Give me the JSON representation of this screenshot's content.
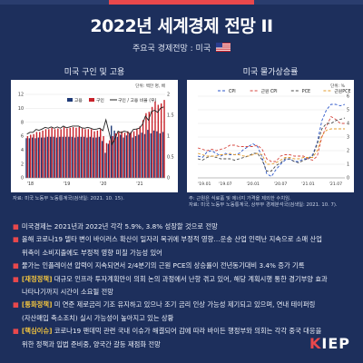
{
  "header": {
    "title": "2022년 세계경제 전망 II",
    "subtitle": "주요국 경제전망 : 미국"
  },
  "colors": {
    "background": "#1d2f5c",
    "accent": "#e8484c",
    "tag": "#f3c53f"
  },
  "chart_data": [
    {
      "type": "bar",
      "title": "미국 구인 및 고용",
      "unit_left": "단위: 백만 명, 배",
      "x_ticks": [
        "'18",
        "'19",
        "'20",
        "'21"
      ],
      "ylim": [
        0,
        12
      ],
      "y_ticks": [
        0,
        2,
        4,
        6,
        8,
        10,
        12
      ],
      "y2lim": [
        0,
        2
      ],
      "y2_ticks": [
        0,
        0.5,
        1,
        1.5,
        2
      ],
      "legend": [
        "고용",
        "구인",
        "구인 / 고용 비율 (우)"
      ],
      "legend_position": "top-right",
      "series": [
        {
          "name": "고용",
          "color": "#1f3b78",
          "values": [
            5.7,
            5.7,
            5.8,
            5.7,
            5.8,
            5.8,
            5.8,
            5.9,
            5.9,
            5.9,
            5.8,
            5.9,
            5.9,
            5.9,
            5.9,
            5.9,
            5.8,
            5.9,
            5.9,
            5.9,
            5.8,
            5.9,
            5.8,
            5.8,
            5.9,
            5.3,
            3.6,
            4.9,
            7.5,
            6.8,
            5.9,
            6.2,
            5.8,
            6.1,
            6.3,
            5.8,
            6.0,
            6.2,
            6.5,
            6.3,
            6.9,
            6.4,
            6.8,
            6.7,
            6.4,
            6.6
          ]
        },
        {
          "name": "구인",
          "color": "#c8222a",
          "values": [
            6.0,
            6.2,
            6.3,
            6.6,
            6.6,
            6.8,
            7.0,
            7.0,
            7.2,
            7.0,
            7.1,
            7.0,
            7.3,
            7.1,
            7.2,
            7.3,
            7.2,
            7.3,
            7.1,
            7.0,
            7.0,
            7.0,
            6.7,
            6.8,
            7.0,
            6.0,
            5.0,
            5.4,
            6.0,
            6.4,
            6.6,
            6.7,
            6.5,
            6.7,
            6.6,
            6.7,
            7.0,
            7.4,
            8.3,
            9.3,
            9.5,
            10.2,
            11.0,
            10.5,
            10.7,
            11.2
          ]
        },
        {
          "name": "구인 / 고용 비율 (우)",
          "color": "#222222",
          "values": [
            1.05,
            1.09,
            1.09,
            1.16,
            1.14,
            1.17,
            1.21,
            1.19,
            1.22,
            1.19,
            1.22,
            1.19,
            1.24,
            1.2,
            1.22,
            1.24,
            1.24,
            1.24,
            1.2,
            1.19,
            1.21,
            1.19,
            1.16,
            1.17,
            1.19,
            1.13,
            1.39,
            1.1,
            0.8,
            0.94,
            1.12,
            1.08,
            1.12,
            1.1,
            1.05,
            1.16,
            1.17,
            1.19,
            1.28,
            1.48,
            1.38,
            1.59,
            1.62,
            1.57,
            1.67,
            1.7
          ]
        }
      ],
      "source": "자료: 미국 노동부 노동통계국(검색일: 2021. 10. 15)."
    },
    {
      "type": "line",
      "title": "미국 물가상승률",
      "unit": "단위: %",
      "x_ticks": [
        "'19.01",
        "'19.07",
        "'20.01",
        "'20.07",
        "'21.01",
        "'21.07"
      ],
      "ylim": [
        0,
        6
      ],
      "y_ticks": [
        0,
        1,
        2,
        3,
        4,
        5,
        6
      ],
      "legend": [
        "CPI",
        "근원 CPI",
        "PCE",
        "근원PCE"
      ],
      "legend_position": "top",
      "series": [
        {
          "name": "CPI",
          "color": "#2b56c9",
          "dash": "3,2",
          "values": [
            1.6,
            1.5,
            1.9,
            2.0,
            1.8,
            1.6,
            1.8,
            1.7,
            1.7,
            1.8,
            2.1,
            2.3,
            2.5,
            2.3,
            1.5,
            0.3,
            0.1,
            0.6,
            1.0,
            1.3,
            1.4,
            1.2,
            1.2,
            1.4,
            1.4,
            1.7,
            2.6,
            4.2,
            5.0,
            5.4,
            5.4,
            5.3,
            5.4
          ]
        },
        {
          "name": "근원 CPI",
          "color": "#d6453d",
          "dash": "3,2",
          "values": [
            2.2,
            2.1,
            2.0,
            2.1,
            2.0,
            2.1,
            2.2,
            2.4,
            2.4,
            2.3,
            2.3,
            2.3,
            2.3,
            2.4,
            2.1,
            1.4,
            1.2,
            1.2,
            1.6,
            1.7,
            1.7,
            1.6,
            1.6,
            1.6,
            1.4,
            1.3,
            1.6,
            3.0,
            3.8,
            4.5,
            4.3,
            4.0,
            4.0
          ]
        },
        {
          "name": "PCE",
          "color": "#4a4a4a",
          "dash": "3,2",
          "values": [
            1.4,
            1.3,
            1.5,
            1.6,
            1.5,
            1.4,
            1.4,
            1.4,
            1.3,
            1.4,
            1.5,
            1.6,
            1.8,
            1.8,
            1.3,
            0.5,
            0.5,
            0.9,
            1.1,
            1.4,
            1.4,
            1.2,
            1.1,
            1.3,
            1.4,
            1.6,
            2.5,
            3.6,
            4.0,
            4.0,
            4.2,
            4.3,
            4.4
          ]
        },
        {
          "name": "근원PCE",
          "color": "#e39b2c",
          "dash": "3,2",
          "values": [
            1.8,
            1.7,
            1.6,
            1.6,
            1.6,
            1.7,
            1.7,
            1.8,
            1.7,
            1.7,
            1.6,
            1.6,
            1.7,
            1.8,
            1.7,
            1.0,
            1.0,
            1.1,
            1.3,
            1.5,
            1.5,
            1.4,
            1.4,
            1.5,
            1.5,
            1.5,
            2.0,
            3.1,
            3.5,
            3.6,
            3.6,
            3.6,
            3.6
          ]
        }
      ],
      "source_line1": "주: 근원은 식료품 및 에너지 가격을 제외한 수치임.",
      "source_line2": "자료: 미국 노동부 노동통계국, 상무부 경제분석국(검색일: 2021. 10. 7)."
    }
  ],
  "bullets": [
    {
      "tag": "",
      "text": "미국경제는 2021년과 2022년 각각 5.9%, 3.8% 성장할 것으로 전망",
      "cont": ""
    },
    {
      "tag": "",
      "text": "올해 코로나19 델타 변이 바이러스 확산이 일자리 복귀에 부정적 영향…운송 산업 인력난 지속으로 소매 산업",
      "cont": "위축이 소비지출에도 부정적 영향 미칠 가능성 있어"
    },
    {
      "tag": "",
      "text": "물가는 인플레이션 압력이 지속되면서 2/4분기의 근원 PCE의 상승률이 전년동기대비 3.4% 증가 기록",
      "cont": ""
    },
    {
      "tag": "[재정정책]",
      "text": " 대규모 인프라 투자계획안이 의회 논의 과정에서 난항 겪고 있어, 해당 계획시행 통한 경기부양 효과",
      "cont": "나타나기까지 시간이 소요될 전망"
    },
    {
      "tag": "[통화정책]",
      "text": " 미 연준 제로금리 기조 유지하고 있으나 조기 금리 인상 가능성 제기되고 있으며, 연내 테이퍼링",
      "cont": "(자산매입 축소조치) 실시 가능성이 높아지고 있는 상황"
    },
    {
      "tag": "[핵심이슈]",
      "text": " 코로나19 팬데믹 관련 국내 이슈가 해결되어 감에 따라 바이든 행정부와 의회는 각각 중국 대응을",
      "cont": "위한 정책과 입법 준비중, 양국간 갈등 재점화 전망"
    }
  ],
  "logo": {
    "text": "KIEP",
    "mark": "K"
  }
}
